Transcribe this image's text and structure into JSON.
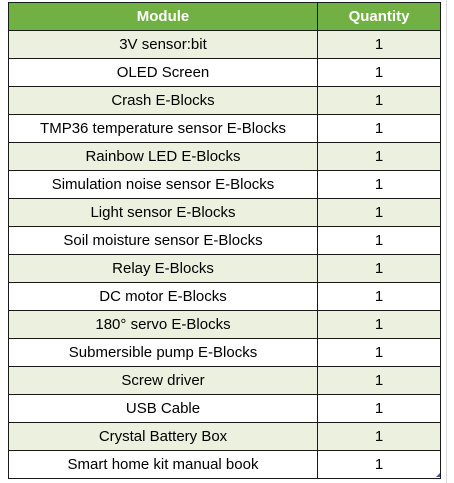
{
  "table": {
    "headers": {
      "module": "Module",
      "quantity": "Quantity"
    },
    "rows": [
      {
        "module": "3V sensor:bit",
        "quantity": "1"
      },
      {
        "module": "OLED Screen",
        "quantity": "1"
      },
      {
        "module": "Crash E-Blocks",
        "quantity": "1"
      },
      {
        "module": "TMP36 temperature sensor E-Blocks",
        "quantity": "1"
      },
      {
        "module": "Rainbow LED E-Blocks",
        "quantity": "1"
      },
      {
        "module": "Simulation noise sensor E-Blocks",
        "quantity": "1"
      },
      {
        "module": "Light sensor E-Blocks",
        "quantity": "1"
      },
      {
        "module": "Soil moisture sensor E-Blocks",
        "quantity": "1"
      },
      {
        "module": "Relay E-Blocks",
        "quantity": "1"
      },
      {
        "module": "DC motor E-Blocks",
        "quantity": "1"
      },
      {
        "module": "180° servo E-Blocks",
        "quantity": "1"
      },
      {
        "module": "Submersible pump E-Blocks",
        "quantity": "1"
      },
      {
        "module": "Screw driver",
        "quantity": "1"
      },
      {
        "module": "USB Cable",
        "quantity": "1"
      },
      {
        "module": "Crystal Battery Box",
        "quantity": "1"
      },
      {
        "module": "Smart home kit manual book",
        "quantity": "1"
      }
    ]
  },
  "colors": {
    "header_background": "#72b043",
    "header_text": "#ffffff",
    "band_row": "#ebf1de",
    "plain_row": "#ffffff",
    "border": "#1a1a1a"
  }
}
